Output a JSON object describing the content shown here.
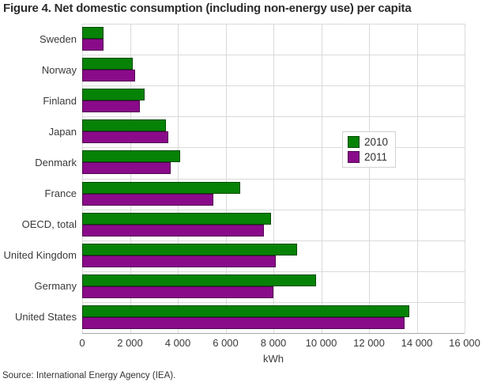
{
  "figure": {
    "title": "Figure 4. Net domestic consumption (including non-energy use) per capita",
    "source": "Source: International Energy Agency (IEA)."
  },
  "chart_data": {
    "type": "bar",
    "orientation": "horizontal",
    "title": "Figure 4. Net domestic consumption (including non-energy use) per capita",
    "categories": [
      "Sweden",
      "Norway",
      "Finland",
      "Japan",
      "Denmark",
      "France",
      "OECD, total",
      "United Kingdom",
      "Germany",
      "United States"
    ],
    "series": [
      {
        "name": "2010",
        "color": "#068206",
        "values": [
          900,
          2100,
          2600,
          3500,
          4100,
          6600,
          7900,
          9000,
          9800,
          13700
        ]
      },
      {
        "name": "2011",
        "color": "#8a0b8a",
        "values": [
          900,
          2200,
          2400,
          3600,
          3700,
          5500,
          7600,
          8100,
          8000,
          13500
        ]
      }
    ],
    "xlabel": "kWh",
    "ylabel": "",
    "xlim": [
      0,
      16000
    ],
    "x_ticks": [
      0,
      2000,
      4000,
      6000,
      8000,
      10000,
      12000,
      14000,
      16000
    ],
    "x_tick_labels": [
      "0",
      "2 000",
      "4 000",
      "6 000",
      "8 000",
      "10 000",
      "12 000",
      "14 000",
      "16 000"
    ],
    "grid": true,
    "legend_position": "center-right",
    "colors": {
      "gridline": "#dadada",
      "axis_line": "#a8a8a8",
      "text": "#3a3a3a",
      "title_text": "#2b2b2b"
    }
  }
}
